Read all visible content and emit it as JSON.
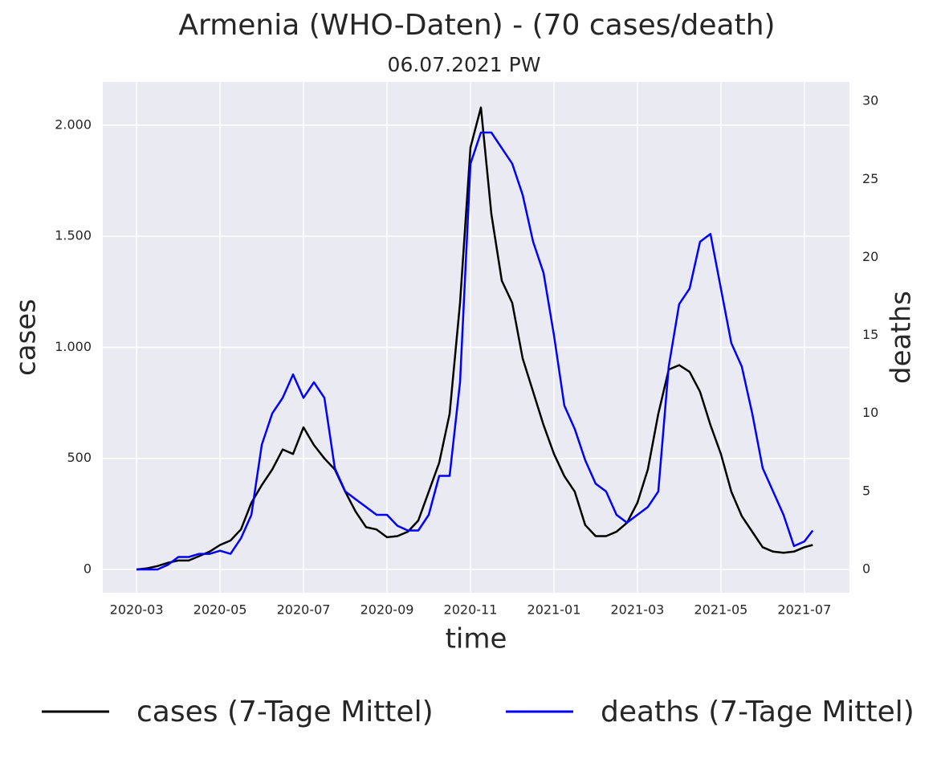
{
  "chart_data": {
    "type": "line",
    "title": "Armenia (WHO-Daten) - (70 cases/death)",
    "subtitle": "06.07.2021 PW",
    "x_label": "time",
    "y_label": "cases",
    "y2_label": "deaths",
    "y2_label_color": "#0000ff",
    "x": [
      0,
      0.25,
      0.5,
      0.75,
      1,
      1.25,
      1.5,
      1.75,
      2,
      2.25,
      2.5,
      2.75,
      3,
      3.25,
      3.5,
      3.75,
      4,
      4.25,
      4.5,
      4.75,
      5,
      5.25,
      5.5,
      5.75,
      6,
      6.25,
      6.5,
      6.75,
      7,
      7.25,
      7.5,
      7.75,
      8,
      8.25,
      8.5,
      8.75,
      9,
      9.25,
      9.5,
      9.75,
      10,
      10.25,
      10.5,
      10.75,
      11,
      11.25,
      11.5,
      11.75,
      12,
      12.25,
      12.5,
      12.75,
      13,
      13.25,
      13.5,
      13.75,
      14,
      14.25,
      14.5,
      14.75,
      15,
      15.25,
      15.5,
      15.75,
      16,
      16.2
    ],
    "series": [
      {
        "name": "cases (7-Tage Mittel)",
        "color": "#000000",
        "values": [
          0,
          5,
          15,
          30,
          40,
          40,
          60,
          80,
          110,
          130,
          180,
          300,
          380,
          450,
          540,
          520,
          640,
          560,
          500,
          450,
          350,
          260,
          190,
          180,
          145,
          150,
          170,
          220,
          350,
          480,
          700,
          1200,
          1900,
          2080,
          1600,
          1300,
          1200,
          950,
          800,
          650,
          520,
          420,
          350,
          200,
          150,
          150,
          170,
          210,
          300,
          450,
          700,
          900,
          920,
          890,
          800,
          650,
          520,
          350,
          240,
          170,
          100,
          80,
          75,
          80,
          100,
          110
        ]
      },
      {
        "name": "deaths (7-Tage Mittel)",
        "color": "#0000ff",
        "axis": "y2",
        "values": [
          0,
          0,
          0,
          0.3,
          0.8,
          0.8,
          1,
          1,
          1.2,
          1,
          2,
          3.5,
          8,
          10,
          11,
          12.5,
          11,
          12,
          11,
          6.5,
          5,
          4.5,
          4,
          3.5,
          3.5,
          2.8,
          2.5,
          2.5,
          3.5,
          6,
          6,
          12,
          26,
          28,
          28,
          27,
          26,
          24,
          21,
          19,
          15,
          10.5,
          9,
          7,
          5.5,
          5,
          3.5,
          3,
          3.5,
          4,
          5,
          13,
          17,
          18,
          21,
          21.5,
          18,
          14.5,
          13,
          10,
          6.5,
          5,
          3.5,
          1.5,
          1.8,
          2.5
        ]
      }
    ],
    "xlim": [
      -0.81,
      17.08
    ],
    "xticks": [
      {
        "value": 0,
        "label": "2020-03"
      },
      {
        "value": 2,
        "label": "2020-05"
      },
      {
        "value": 4,
        "label": "2020-07"
      },
      {
        "value": 6,
        "label": "2020-09"
      },
      {
        "value": 8,
        "label": "2020-11"
      },
      {
        "value": 10,
        "label": "2021-01"
      },
      {
        "value": 12,
        "label": "2021-03"
      },
      {
        "value": 14,
        "label": "2021-05"
      },
      {
        "value": 16,
        "label": "2021-07"
      }
    ],
    "ylim": [
      -105,
      2195
    ],
    "yticks": [
      0,
      500,
      {
        "value": 1000,
        "label": "1.000"
      },
      {
        "value": 1500,
        "label": "1.500"
      },
      {
        "value": 2000,
        "label": "2.000"
      }
    ],
    "y2lim": [
      -1.49,
      31.24
    ],
    "y2ticks": [
      0,
      5,
      10,
      15,
      20,
      25,
      30
    ],
    "grid": true,
    "legend": "bottom"
  }
}
